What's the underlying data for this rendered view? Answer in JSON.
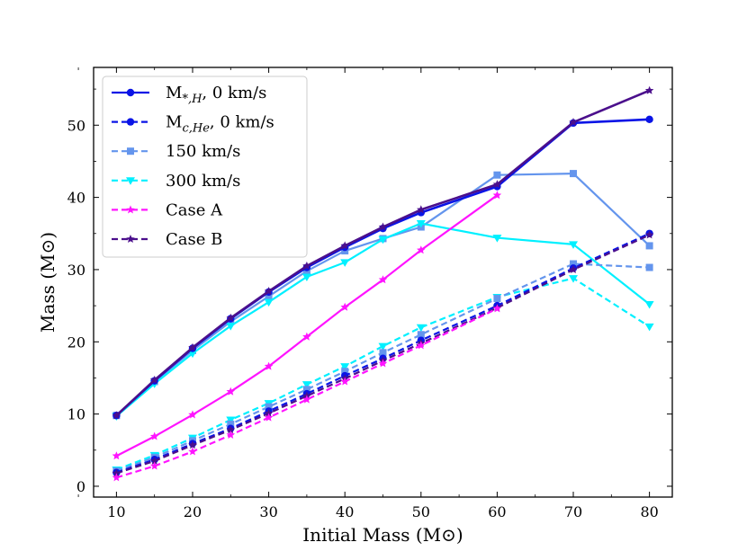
{
  "chart_data": {
    "type": "line",
    "xlabel": "Initial Mass (M⊙)",
    "ylabel": "Mass (M⊙)",
    "xlim": [
      7,
      83
    ],
    "ylim": [
      -1.5,
      58
    ],
    "xticks": [
      10,
      20,
      30,
      40,
      50,
      60,
      70,
      80
    ],
    "yticks": [
      0,
      10,
      20,
      30,
      40,
      50
    ],
    "x": [
      10,
      15,
      20,
      25,
      30,
      35,
      40,
      45,
      50,
      60,
      70,
      80
    ],
    "legend": [
      {
        "base": "M",
        "sub": "*,H",
        "suffix": ", 0 km/s",
        "color": "#0a14e6",
        "marker": "circle",
        "dash": "solid"
      },
      {
        "base": "M",
        "sub": "c,He",
        "suffix": ", 0 km/s",
        "color": "#0a14e6",
        "marker": "circle",
        "dash": "dashed"
      },
      {
        "label": "150 km/s",
        "color": "#6495ed",
        "marker": "square",
        "dash": "dashed"
      },
      {
        "label": "300 km/s",
        "color": "#00f0ff",
        "marker": "triangle",
        "dash": "dashed"
      },
      {
        "label": "Case A",
        "color": "#ff14ff",
        "marker": "star",
        "dash": "dashed"
      },
      {
        "label": "Case B",
        "color": "#4b0f8c",
        "marker": "star",
        "dash": "dashed"
      }
    ],
    "series": [
      {
        "name": "M*,H 150 km/s",
        "color": "#6495ed",
        "marker": "square",
        "dash": "solid",
        "width": 2.2,
        "values": [
          9.8,
          14.5,
          18.8,
          22.8,
          26.3,
          29.8,
          32.6,
          34.3,
          35.9,
          43.1,
          43.3,
          33.3
        ]
      },
      {
        "name": "M*,H 300 km/s",
        "color": "#00f0ff",
        "marker": "triangle",
        "dash": "solid",
        "width": 2.2,
        "values": [
          9.7,
          14.2,
          18.4,
          22.2,
          25.5,
          29.0,
          31.0,
          34.2,
          36.4,
          34.4,
          33.5,
          25.2
        ]
      },
      {
        "name": "M*,H Case A",
        "color": "#ff14ff",
        "marker": "star",
        "dash": "solid",
        "width": 2.2,
        "values": [
          4.2,
          6.9,
          9.9,
          13.1,
          16.6,
          20.7,
          24.8,
          28.6,
          32.7,
          40.3,
          null,
          null
        ]
      },
      {
        "name": "M*,H 0 km/s",
        "color": "#0a14e6",
        "marker": "circle",
        "dash": "solid",
        "width": 2.6,
        "values": [
          9.8,
          14.6,
          19.1,
          23.2,
          26.9,
          30.3,
          33.1,
          35.7,
          37.9,
          41.5,
          50.3,
          50.8
        ]
      },
      {
        "name": "M*,H Case B",
        "color": "#4b0f8c",
        "marker": "star",
        "dash": "solid",
        "width": 2.6,
        "values": [
          9.8,
          14.7,
          19.2,
          23.3,
          27.0,
          30.5,
          33.3,
          35.9,
          38.3,
          41.8,
          50.4,
          54.8
        ]
      },
      {
        "name": "Mc,He 300 km/s",
        "color": "#00f0ff",
        "marker": "triangle",
        "dash": "dashed",
        "width": 2.2,
        "values": [
          2.3,
          4.3,
          6.7,
          9.2,
          11.5,
          14.1,
          16.6,
          19.4,
          22.0,
          26.2,
          28.8,
          22.1
        ]
      },
      {
        "name": "Mc,He 150 km/s",
        "color": "#6495ed",
        "marker": "square",
        "dash": "dashed",
        "width": 2.2,
        "values": [
          2.1,
          4.0,
          6.3,
          8.6,
          11.0,
          13.4,
          15.9,
          18.5,
          21.0,
          26.0,
          30.8,
          30.3
        ]
      },
      {
        "name": "Mc,He 0 km/s",
        "color": "#0a14e6",
        "marker": "circle",
        "dash": "dashed",
        "width": 2.2,
        "values": [
          1.9,
          3.7,
          5.9,
          8.0,
          10.4,
          12.8,
          15.3,
          17.7,
          20.2,
          25.0,
          30.2,
          35.0
        ]
      },
      {
        "name": "Mc,He Case B",
        "color": "#4b0f8c",
        "marker": "star",
        "dash": "dashed",
        "width": 2.2,
        "values": [
          1.8,
          3.5,
          5.7,
          7.8,
          10.1,
          12.5,
          14.9,
          17.4,
          19.8,
          24.7,
          30.0,
          34.8
        ]
      },
      {
        "name": "Mc,He Case A",
        "color": "#ff14ff",
        "marker": "star",
        "dash": "dashed",
        "width": 2.2,
        "values": [
          1.2,
          2.8,
          4.8,
          7.1,
          9.5,
          12.0,
          14.5,
          17.0,
          19.5,
          24.6,
          null,
          null
        ]
      }
    ]
  }
}
